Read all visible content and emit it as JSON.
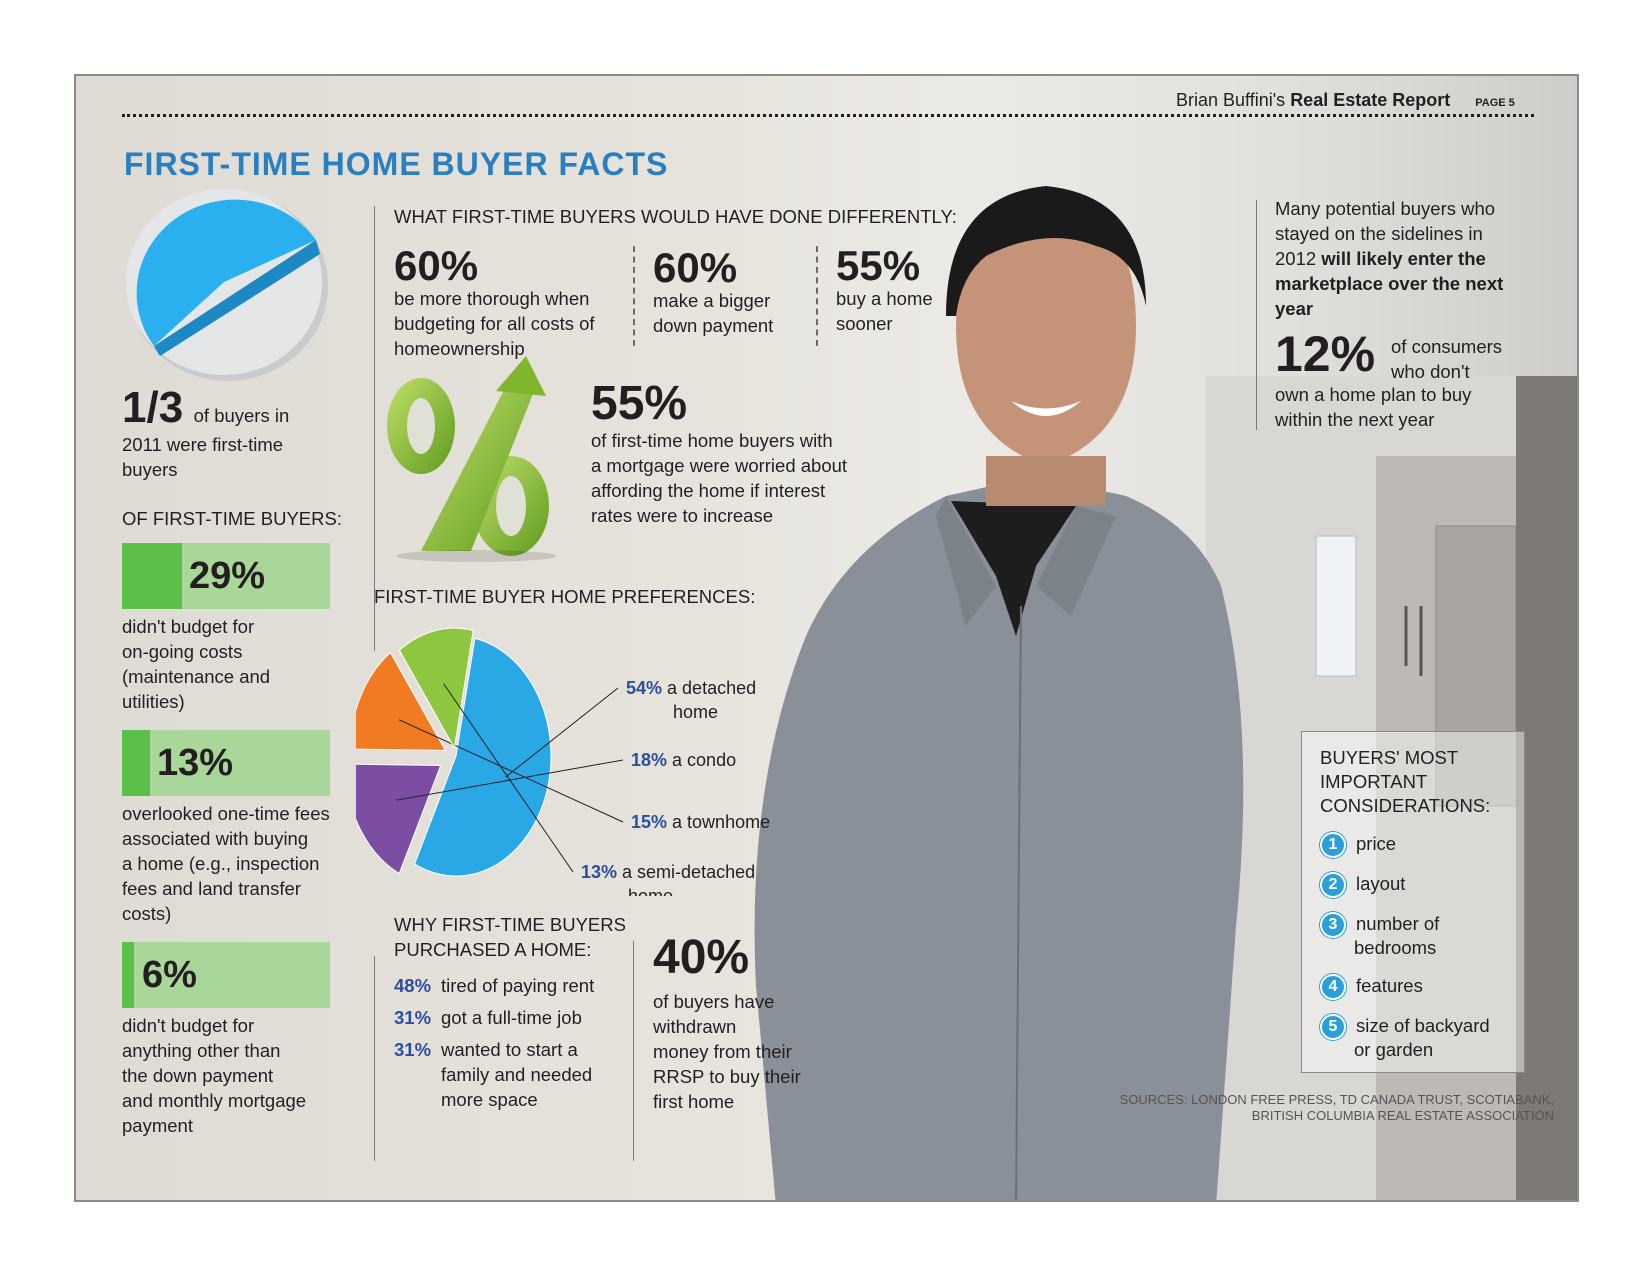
{
  "header": {
    "author": "Brian Buffini's",
    "report": "Real Estate Report",
    "page": "PAGE 5"
  },
  "title": "FIRST-TIME HOME BUYER FACTS",
  "left": {
    "stat_value": "1/3",
    "stat_text_1": "of buyers in",
    "stat_text_2": "2011 were first-time",
    "stat_text_3": "buyers",
    "of_first_time_label": "OF FIRST-TIME BUYERS:",
    "bars": [
      {
        "value": "29%",
        "fraction": 0.29,
        "lines": [
          "didn't budget for",
          "on-going costs",
          "(maintenance and",
          "utilities)"
        ]
      },
      {
        "value": "13%",
        "fraction": 0.13,
        "lines": [
          "overlooked one-time fees",
          "associated with buying",
          "a home (e.g., inspection",
          "fees and land transfer",
          "costs)"
        ]
      },
      {
        "value": "6%",
        "fraction": 0.06,
        "lines": [
          "didn't budget for",
          "anything other than",
          "the down payment",
          "and monthly mortgage",
          "payment"
        ]
      }
    ]
  },
  "differently": {
    "heading": "WHAT FIRST-TIME BUYERS WOULD HAVE DONE DIFFERENTLY:",
    "items": [
      {
        "value": "60%",
        "lines": [
          "be more thorough when",
          "budgeting for all costs of",
          "homeownership"
        ]
      },
      {
        "value": "60%",
        "lines": [
          "make a bigger",
          "down payment"
        ]
      },
      {
        "value": "55%",
        "lines": [
          "buy a home",
          "sooner"
        ]
      }
    ]
  },
  "worried": {
    "value": "55%",
    "lines": [
      "of first-time home buyers with",
      "a mortgage were worried about",
      "affording the home if interest",
      "rates were to increase"
    ]
  },
  "preferences": {
    "heading": "FIRST-TIME BUYER HOME PREFERENCES:"
  },
  "chart_data": {
    "type": "pie",
    "categories": [
      "a detached home",
      "a condo",
      "a townhome",
      "a semi-detached home"
    ],
    "values": [
      54,
      18,
      15,
      13
    ],
    "value_labels": [
      "54%",
      "18%",
      "15%",
      "13%"
    ],
    "label_lines": [
      [
        "a detached",
        "home"
      ],
      [
        "a condo"
      ],
      [
        "a townhome"
      ],
      [
        "a semi-detached",
        "home"
      ]
    ],
    "colors": [
      "#2aa8e6",
      "#7b4ea3",
      "#f07b22",
      "#8dc63f"
    ]
  },
  "why": {
    "heading_1": "WHY FIRST-TIME BUYERS",
    "heading_2": "PURCHASED A HOME:",
    "items": [
      {
        "value": "48%",
        "lines": [
          "tired of paying rent"
        ]
      },
      {
        "value": "31%",
        "lines": [
          "got a full-time job"
        ]
      },
      {
        "value": "31%",
        "lines": [
          "wanted to start a",
          "family and needed",
          "more space"
        ]
      }
    ]
  },
  "rrsp": {
    "value": "40%",
    "lines": [
      "of buyers have",
      "withdrawn",
      "money from their",
      "RRSP to buy their",
      "first home"
    ]
  },
  "sidelines": {
    "line_1": "Many potential buyers who",
    "line_2": "stayed on the sidelines in",
    "line_3_plain": "2012 ",
    "line_3_bold": "will likely enter the",
    "line_4_bold": "marketplace over the next",
    "line_5_bold": "year"
  },
  "consumers": {
    "value": "12%",
    "text_1": "of consumers",
    "text_2": "who don't",
    "text_3": "own a home plan to buy",
    "text_4": "within the next year"
  },
  "considerations": {
    "heading": [
      "BUYERS' MOST",
      "IMPORTANT",
      "CONSIDERATIONS:"
    ],
    "items": [
      {
        "num": "1",
        "lines": [
          "price"
        ]
      },
      {
        "num": "2",
        "lines": [
          "layout"
        ]
      },
      {
        "num": "3",
        "lines": [
          "number of",
          "bedrooms"
        ]
      },
      {
        "num": "4",
        "lines": [
          "features"
        ]
      },
      {
        "num": "5",
        "lines": [
          "size of backyard",
          "or garden"
        ]
      }
    ]
  },
  "sources": {
    "line_1": "SOURCES: LONDON FREE PRESS, TD CANADA TRUST, SCOTIABANK,",
    "line_2": "BRITISH COLUMBIA REAL ESTATE ASSOCIATION"
  }
}
